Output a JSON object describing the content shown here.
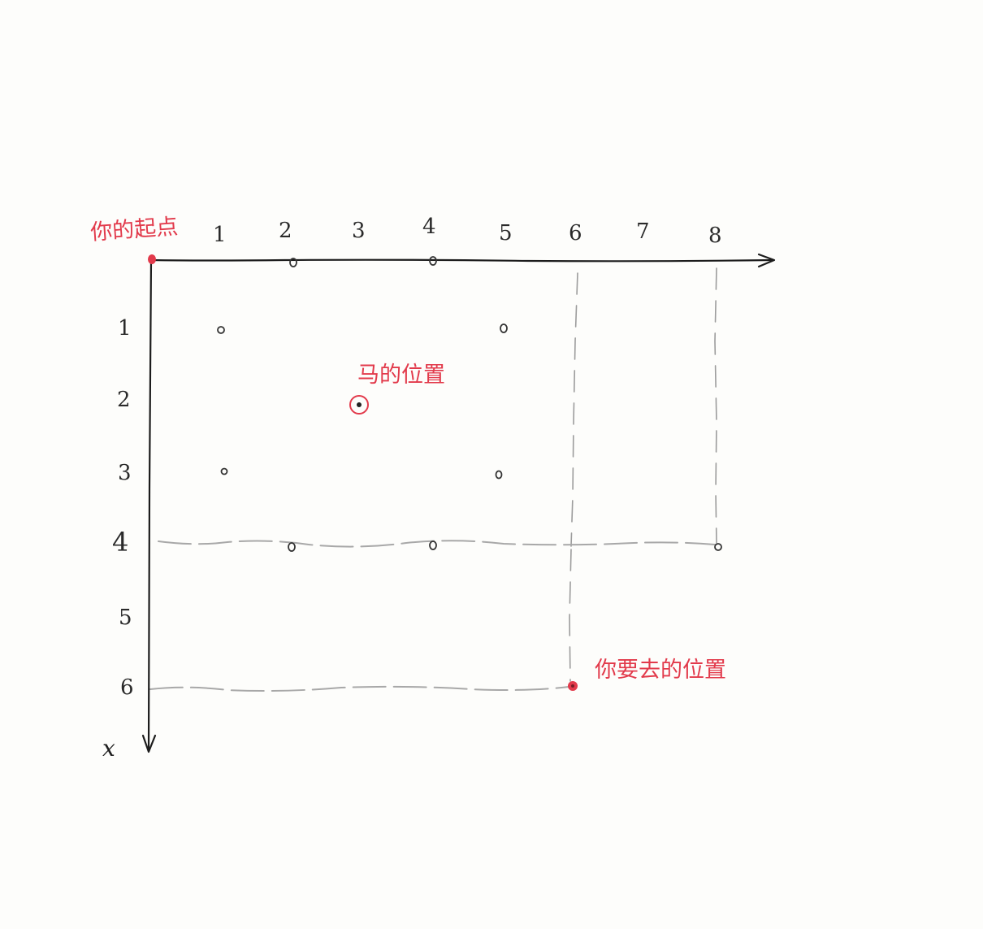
{
  "labels": {
    "start": "你的起点",
    "horse_position": "马的位置",
    "target_position": "你要去的位置",
    "axis_x": "x"
  },
  "top_axis_ticks": [
    "1",
    "2",
    "3",
    "4",
    "5",
    "6",
    "7",
    "8"
  ],
  "left_axis_ticks": [
    "1",
    "2",
    "3",
    "4",
    "5",
    "6"
  ],
  "colors": {
    "ink": "#1c1c1c",
    "highlight": "#e23a4b",
    "guide": "#9c9c9c"
  },
  "grid": {
    "start": {
      "row": 0,
      "col": 0
    },
    "horse": {
      "row": 2,
      "col": 3
    },
    "target": {
      "row": 6,
      "col": 6
    },
    "blocked_points": [
      {
        "row": 0,
        "col": 2
      },
      {
        "row": 0,
        "col": 4
      },
      {
        "row": 1,
        "col": 1
      },
      {
        "row": 1,
        "col": 5
      },
      {
        "row": 3,
        "col": 1
      },
      {
        "row": 3,
        "col": 5
      },
      {
        "row": 4,
        "col": 2
      },
      {
        "row": 4,
        "col": 4
      },
      {
        "row": 4,
        "col": 8
      }
    ]
  }
}
